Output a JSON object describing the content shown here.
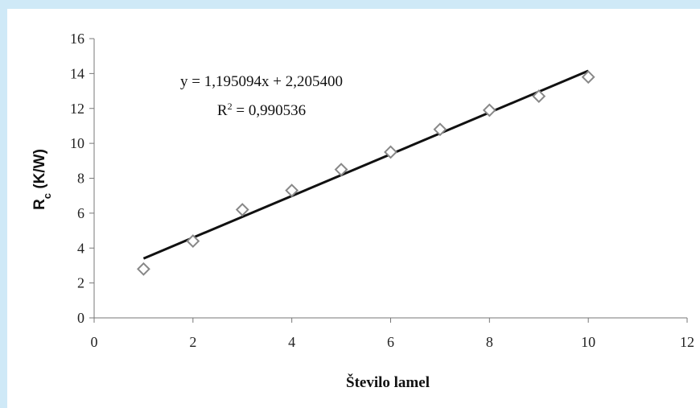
{
  "chart_data": {
    "type": "scatter",
    "xlabel": "Število lamel",
    "ylabel": "R",
    "ylabel_sub": "c",
    "ylabel_unit": " (K/W)",
    "xlim": [
      0,
      12
    ],
    "ylim": [
      0,
      16
    ],
    "xticks": [
      0,
      2,
      4,
      6,
      8,
      10,
      12
    ],
    "yticks": [
      0,
      2,
      4,
      6,
      8,
      10,
      12,
      14,
      16
    ],
    "grid": false,
    "marker": "diamond",
    "marker_color": "#888888",
    "line_color": "#111111",
    "series": [
      {
        "x": [
          1,
          2,
          3,
          4,
          5,
          6,
          7,
          8,
          9,
          10
        ],
        "y": [
          2.8,
          4.4,
          6.2,
          7.3,
          8.5,
          9.5,
          10.8,
          11.9,
          12.7,
          13.8
        ]
      }
    ],
    "trendline": {
      "slope": 1.195094,
      "intercept": 2.2054,
      "x_range": [
        1,
        10
      ],
      "equation": "y = 1,195094x + 2,205400",
      "r2_label": "R",
      "r2_sup": "2",
      "r2_value": " = 0,990536"
    }
  }
}
